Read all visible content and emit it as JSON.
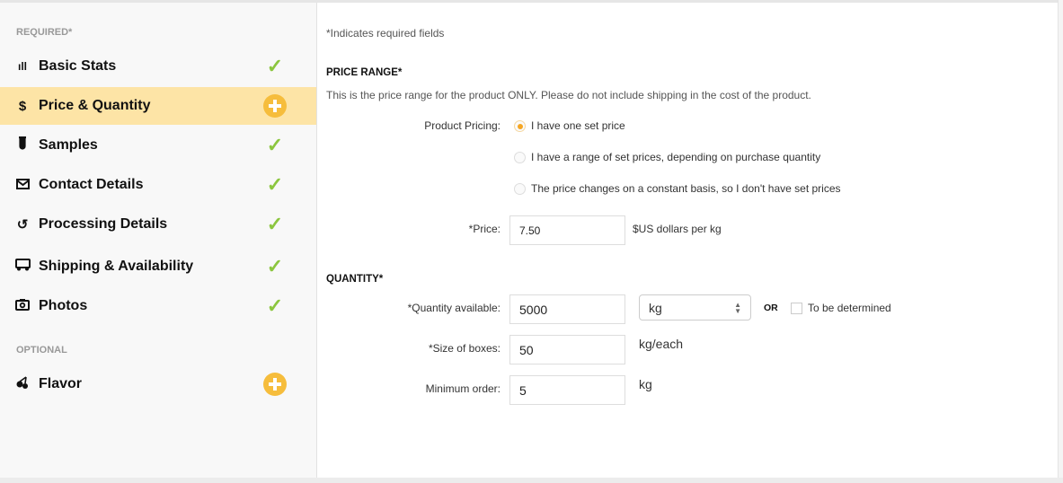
{
  "sidebar": {
    "required_label": "REQUIRED*",
    "optional_label": "OPTIONAL",
    "items": [
      {
        "label": "Basic Stats",
        "icon": "bar-chart-icon",
        "status": "complete"
      },
      {
        "label": "Price & Quantity",
        "icon": "dollar-icon",
        "status": "incomplete",
        "active": true
      },
      {
        "label": "Samples",
        "icon": "test-tube-icon",
        "status": "complete"
      },
      {
        "label": "Contact Details",
        "icon": "envelope-icon",
        "status": "complete"
      },
      {
        "label": "Processing Details",
        "icon": "refresh-icon",
        "status": "complete"
      },
      {
        "label": "Shipping & Availability",
        "icon": "truck-icon",
        "status": "complete"
      },
      {
        "label": "Photos",
        "icon": "camera-icon",
        "status": "complete"
      }
    ],
    "optional_items": [
      {
        "label": "Flavor",
        "icon": "cherry-icon",
        "status": "add"
      }
    ]
  },
  "main": {
    "required_note": "*Indicates required fields",
    "price_range": {
      "title": "PRICE RANGE*",
      "description": "This is the price range for the product ONLY. Please do not include shipping in the cost of the product.",
      "pricing_label": "Product Pricing:",
      "options": [
        "I have one set price",
        "I have a range of set prices, depending on purchase quantity",
        "The price changes on a constant basis, so I don't have set prices"
      ],
      "selected_option": "I have one set price",
      "price_label": "*Price:",
      "price_value": "7.50",
      "price_unit": "$US dollars per kg"
    },
    "quantity": {
      "title": "QUANTITY*",
      "available_label": "*Quantity available:",
      "available_value": "5000",
      "unit_selected": "kg",
      "or_label": "OR",
      "tbd_label": "To be determined",
      "tbd_checked": false,
      "box_label": "*Size of boxes:",
      "box_value": "50",
      "box_unit": "kg/each",
      "min_label": "Minimum order:",
      "min_value": "5",
      "min_unit": "kg"
    }
  },
  "colors": {
    "accent": "#f6bd3c",
    "active_row": "#fde4a6",
    "check": "#8cc63f",
    "radio": "#f5a623"
  }
}
